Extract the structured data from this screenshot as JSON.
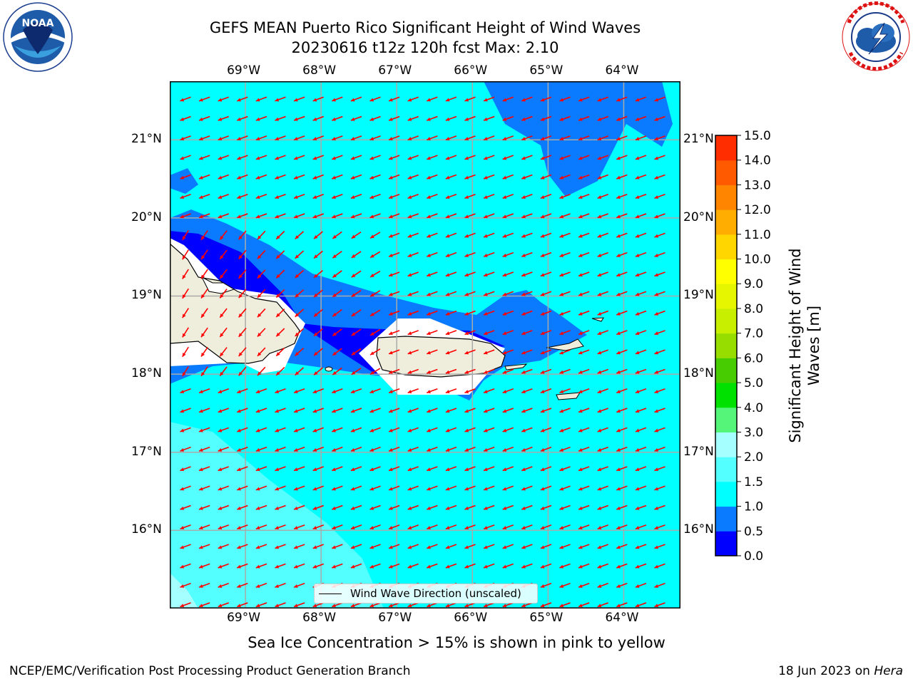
{
  "title": {
    "line1": "GEFS MEAN Puerto Rico Significant Height of Wind Waves",
    "line2": "20230616 t12z 120h fcst   Max: 2.10"
  },
  "axes": {
    "lon_labels": [
      "69°W",
      "68°W",
      "67°W",
      "66°W",
      "65°W",
      "64°W"
    ],
    "lat_labels": [
      "21°N",
      "20°N",
      "19°N",
      "18°N",
      "17°N",
      "16°N"
    ],
    "lon_range": [
      -70.0,
      -63.25
    ],
    "lat_range": [
      15.0,
      21.75
    ],
    "grid": true
  },
  "colorbar": {
    "title": "Significant Height of Wind Waves [m]",
    "levels": [
      "0.0",
      "0.5",
      "1.0",
      "1.5",
      "2.0",
      "3.0",
      "4.0",
      "5.0",
      "6.0",
      "7.0",
      "8.0",
      "9.0",
      "10.0",
      "11.0",
      "12.0",
      "13.0",
      "14.0",
      "15.0"
    ],
    "colors": [
      "#0000ff",
      "#0a7bff",
      "#00ffff",
      "#53ffff",
      "#a6ffff",
      "#55f57a",
      "#00e100",
      "#46cc00",
      "#97de00",
      "#c8ee00",
      "#e6f500",
      "#ffff00",
      "#ffd600",
      "#ffad00",
      "#ff8400",
      "#ff5a00",
      "#ff2d00"
    ]
  },
  "legend": {
    "label": "Wind Wave Direction (unscaled)"
  },
  "arrow_color": "#ff0000",
  "land_color": "#efeedd",
  "caption": "Sea Ice Concentration > 15% is shown in pink to yellow",
  "footer": {
    "left": "NCEP/EMC/Verification Post Processing Product Generation Branch",
    "right_date": "18 Jun 2023 on ",
    "right_host": "Hera"
  },
  "logos": {
    "noaa_text": "NOAA",
    "noaa_ring": "NATIONAL OCEANIC AND ATMOSPHERIC ADMINISTRATION · U.S. DEPARTMENT OF COMMERCE",
    "nws_ring": "NATIONAL WEATHER SERVICE"
  }
}
